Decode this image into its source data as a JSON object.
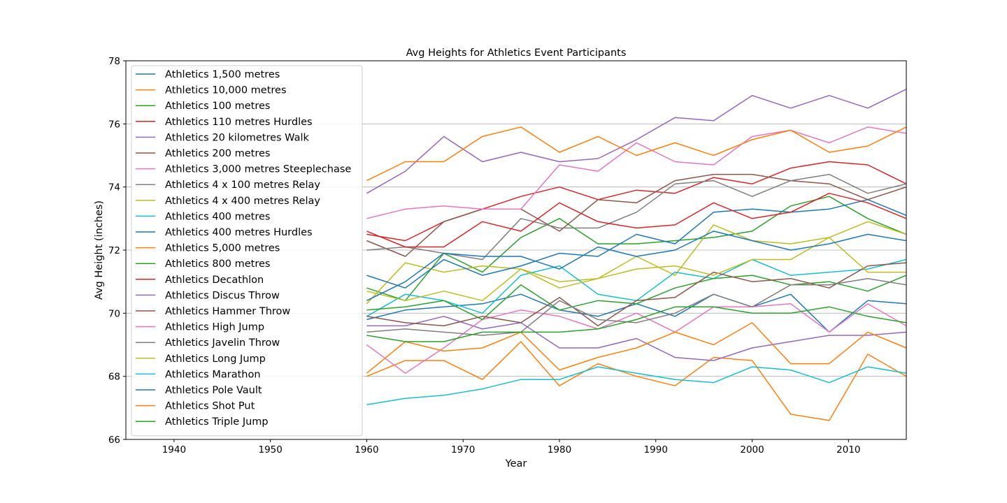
{
  "chart_data": {
    "type": "line",
    "title": "Avg Heights for Athletics Event Participants",
    "xlabel": "Year",
    "ylabel": "Avg Height (inches)",
    "xlim": [
      1935,
      2016
    ],
    "ylim": [
      66,
      78
    ],
    "xticks": [
      1940,
      1950,
      1960,
      1970,
      1980,
      1990,
      2000,
      2010
    ],
    "yticks": [
      66,
      68,
      70,
      72,
      74,
      76,
      78
    ],
    "grid": "horizontal",
    "legend": "upper-left",
    "x": [
      1960,
      1964,
      1968,
      1972,
      1976,
      1980,
      1984,
      1988,
      1992,
      1996,
      2000,
      2004,
      2008,
      2012,
      2016
    ],
    "series": [
      {
        "name": "Athletics 1,500 metres",
        "color": "#1f77b4",
        "values": [
          69.8,
          70.1,
          70.2,
          70.3,
          70.6,
          70.1,
          69.9,
          70.3,
          69.9,
          70.6,
          70.2,
          70.6,
          69.4,
          70.4,
          70.3
        ]
      },
      {
        "name": "Athletics 10,000 metres",
        "color": "#ff7f0e",
        "values": [
          68.0,
          68.5,
          68.5,
          67.9,
          69.1,
          67.7,
          68.4,
          68.0,
          67.7,
          68.6,
          68.5,
          66.8,
          66.6,
          68.7,
          68.0
        ]
      },
      {
        "name": "Athletics 100 metres",
        "color": "#2ca02c",
        "values": [
          70.8,
          70.4,
          71.9,
          71.3,
          72.4,
          73.0,
          72.2,
          72.2,
          72.3,
          72.4,
          72.6,
          73.4,
          73.7,
          73.0,
          72.5
        ]
      },
      {
        "name": "Athletics 110 metres Hurdles",
        "color": "#d62728",
        "values": [
          72.5,
          72.3,
          72.9,
          73.3,
          73.7,
          74.0,
          73.6,
          73.9,
          73.8,
          74.3,
          74.1,
          74.6,
          74.8,
          74.7,
          74.1
        ]
      },
      {
        "name": "Athletics 20 kilometres Walk",
        "color": "#9467bd",
        "values": [
          69.6,
          69.6,
          69.9,
          69.5,
          69.7,
          68.9,
          68.9,
          69.2,
          68.6,
          68.5,
          68.9,
          69.1,
          69.3,
          69.3,
          69.4
        ]
      },
      {
        "name": "Athletics 200 metres",
        "color": "#8c564b",
        "values": [
          72.3,
          71.8,
          72.9,
          73.3,
          73.3,
          72.6,
          73.6,
          73.5,
          74.2,
          74.4,
          74.4,
          74.2,
          74.1,
          73.6,
          74.0
        ]
      },
      {
        "name": "Athletics 3,000 metres Steeplechase",
        "color": "#e377c2",
        "values": [
          69.0,
          68.1,
          68.9,
          69.8,
          70.1,
          69.9,
          69.5,
          70.0,
          69.4,
          70.2,
          70.2,
          70.3,
          69.4,
          70.3,
          69.6
        ]
      },
      {
        "name": "Athletics 4 x 100 metres Relay",
        "color": "#7f7f7f",
        "values": [
          72.0,
          72.1,
          71.9,
          71.7,
          73.0,
          72.7,
          72.7,
          73.2,
          74.1,
          74.2,
          73.7,
          74.2,
          74.4,
          73.8,
          74.1
        ]
      },
      {
        "name": "Athletics 4 x 400 metres Relay",
        "color": "#bcbd22",
        "values": [
          70.3,
          71.6,
          71.3,
          71.5,
          71.4,
          71.0,
          71.1,
          71.8,
          71.2,
          72.8,
          72.3,
          72.2,
          72.4,
          72.9,
          72.5
        ]
      },
      {
        "name": "Athletics 400 metres",
        "color": "#17becf",
        "values": [
          69.9,
          70.6,
          70.4,
          70.0,
          71.2,
          71.5,
          70.6,
          70.4,
          71.3,
          71.1,
          71.7,
          71.2,
          71.3,
          71.4,
          71.7
        ]
      },
      {
        "name": "Athletics 400 metres Hurdles",
        "color": "#1f77b4",
        "values": [
          71.2,
          70.8,
          71.7,
          71.2,
          71.5,
          71.9,
          71.8,
          72.5,
          72.2,
          73.2,
          73.3,
          73.2,
          73.3,
          73.6,
          73.1
        ]
      },
      {
        "name": "Athletics 5,000 metres",
        "color": "#ff7f0e",
        "values": [
          68.1,
          69.1,
          68.8,
          68.9,
          69.4,
          68.2,
          68.6,
          68.9,
          69.4,
          69.0,
          69.7,
          68.4,
          68.4,
          69.4,
          68.9
        ]
      },
      {
        "name": "Athletics 800 metres",
        "color": "#2ca02c",
        "values": [
          70.1,
          70.2,
          70.4,
          69.8,
          70.9,
          70.1,
          70.4,
          70.3,
          70.8,
          71.1,
          71.2,
          70.9,
          71.0,
          70.7,
          71.2
        ]
      },
      {
        "name": "Athletics Decathlon",
        "color": "#d62728",
        "values": [
          72.6,
          72.1,
          72.1,
          72.9,
          72.6,
          73.5,
          72.9,
          72.7,
          72.8,
          73.5,
          73.0,
          73.2,
          73.8,
          73.5,
          73.0
        ]
      },
      {
        "name": "Athletics Discus Throw",
        "color": "#9467bd",
        "values": [
          73.8,
          74.5,
          75.6,
          74.8,
          75.1,
          74.8,
          74.9,
          75.5,
          76.2,
          76.1,
          76.9,
          76.5,
          76.9,
          76.5,
          77.1
        ]
      },
      {
        "name": "Athletics Hammer Throw",
        "color": "#8c564b",
        "values": [
          69.9,
          69.7,
          69.6,
          69.9,
          69.7,
          70.5,
          69.6,
          70.4,
          70.5,
          71.3,
          71.0,
          71.1,
          70.8,
          71.5,
          71.6
        ]
      },
      {
        "name": "Athletics High Jump",
        "color": "#e377c2",
        "values": [
          73.0,
          73.3,
          73.4,
          73.3,
          73.3,
          74.7,
          74.5,
          75.4,
          74.8,
          74.7,
          75.6,
          75.8,
          75.4,
          75.9,
          75.7
        ]
      },
      {
        "name": "Athletics Javelin Throw",
        "color": "#7f7f7f",
        "values": [
          69.4,
          69.5,
          69.4,
          69.3,
          69.4,
          70.4,
          69.8,
          69.7,
          70.0,
          70.6,
          70.2,
          70.9,
          70.9,
          71.1,
          70.9
        ]
      },
      {
        "name": "Athletics Long Jump",
        "color": "#bcbd22",
        "values": [
          70.7,
          70.4,
          70.7,
          70.4,
          71.4,
          70.8,
          71.1,
          71.4,
          71.5,
          71.2,
          71.7,
          71.7,
          72.4,
          71.3,
          71.3
        ]
      },
      {
        "name": "Athletics Marathon",
        "color": "#17becf",
        "values": [
          67.1,
          67.3,
          67.4,
          67.6,
          67.9,
          67.9,
          68.3,
          68.1,
          67.9,
          67.8,
          68.3,
          68.2,
          67.8,
          68.3,
          68.1
        ]
      },
      {
        "name": "Athletics Pole Vault",
        "color": "#1f77b4",
        "values": [
          70.4,
          71.0,
          71.9,
          71.8,
          71.8,
          71.4,
          72.1,
          71.8,
          72.0,
          72.6,
          72.3,
          72.0,
          72.2,
          72.5,
          72.3
        ]
      },
      {
        "name": "Athletics Shot Put",
        "color": "#ff7f0e",
        "values": [
          74.2,
          74.8,
          74.8,
          75.6,
          75.9,
          75.1,
          75.6,
          75.0,
          75.4,
          75.0,
          75.5,
          75.8,
          75.1,
          75.3,
          75.9
        ]
      },
      {
        "name": "Athletics Triple Jump",
        "color": "#2ca02c",
        "values": [
          69.3,
          69.1,
          69.1,
          69.4,
          69.4,
          69.4,
          69.5,
          69.8,
          70.2,
          70.2,
          70.0,
          70.0,
          70.2,
          69.9,
          69.7
        ]
      }
    ]
  }
}
